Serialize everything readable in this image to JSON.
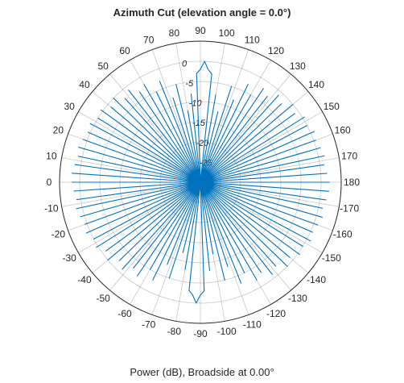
{
  "chart_data": {
    "type": "line",
    "projection": "polar",
    "title": "Azimuth Cut (elevation angle = 0.0°)",
    "xlabel": "Power (dB), Broadside at 0.00°",
    "theta_tick_labels": [
      "0",
      "10",
      "20",
      "30",
      "40",
      "50",
      "60",
      "70",
      "80",
      "90",
      "100",
      "110",
      "120",
      "130",
      "140",
      "150",
      "160",
      "170",
      "180",
      "-170",
      "-160",
      "-150",
      "-140",
      "-130",
      "-120",
      "-110",
      "-100",
      "-90",
      "-80",
      "-70",
      "-60",
      "-50",
      "-40",
      "-30",
      "-20",
      "-10"
    ],
    "theta_ticks_deg": [
      0,
      10,
      20,
      30,
      40,
      50,
      60,
      70,
      80,
      90,
      100,
      110,
      120,
      130,
      140,
      150,
      160,
      170,
      180,
      190,
      200,
      210,
      220,
      230,
      240,
      250,
      260,
      270,
      280,
      290,
      300,
      310,
      320,
      330,
      340,
      350
    ],
    "theta_zero_location": "left",
    "theta_direction": "clockwise",
    "r_tick_labels": [
      "0",
      "-5",
      "-10",
      "-15",
      "-20",
      "-25"
    ],
    "r_ticks": [
      0,
      -5,
      -10,
      -15,
      -20,
      -25
    ],
    "rlim": [
      -30,
      5
    ],
    "grid": true,
    "legend": "none",
    "line_color": "#0072BD",
    "series": [
      {
        "theta": [
          0,
          2,
          4,
          6,
          8,
          10,
          12,
          14,
          16,
          18,
          20,
          22,
          24,
          26,
          28,
          30,
          32,
          34,
          36,
          38,
          40,
          42,
          44,
          46,
          48,
          50,
          52,
          54,
          56,
          58,
          60,
          62,
          64,
          66,
          68,
          70,
          72,
          74,
          76,
          78,
          80,
          82,
          84,
          86,
          88,
          90,
          92,
          94,
          96,
          98,
          100,
          102,
          104,
          106,
          108,
          110,
          112,
          114,
          116,
          118,
          120,
          122,
          124,
          126,
          128,
          130,
          132,
          134,
          136,
          138,
          140,
          142,
          144,
          146,
          148,
          150,
          152,
          154,
          156,
          158,
          160,
          162,
          164,
          166,
          168,
          170,
          172,
          174,
          176,
          178,
          180,
          182,
          184,
          186,
          188,
          190,
          192,
          194,
          196,
          198,
          200,
          202,
          204,
          206,
          208,
          210,
          212,
          214,
          216,
          218,
          220,
          222,
          224,
          226,
          228,
          230,
          232,
          234,
          236,
          238,
          240,
          242,
          244,
          246,
          248,
          250,
          252,
          254,
          256,
          258,
          260,
          262,
          264,
          266,
          268,
          270,
          272,
          274,
          276,
          278,
          280,
          282,
          284,
          286,
          288,
          290,
          292,
          294,
          296,
          298,
          300,
          302,
          304,
          306,
          308,
          310,
          312,
          314,
          316,
          318,
          320,
          322,
          324,
          326,
          328,
          330,
          332,
          334,
          336,
          338,
          340,
          342,
          344,
          346,
          348,
          350,
          352,
          354,
          356,
          358,
          360
        ],
        "r": [
          2,
          -30,
          2,
          -30,
          1.5,
          -30,
          1,
          -30,
          1.5,
          -30,
          1,
          -30,
          0.5,
          -30,
          1,
          -30,
          0,
          -30,
          0.5,
          -30,
          -1,
          -30,
          0,
          -30,
          -2,
          -30,
          -1,
          -30,
          -3,
          -30,
          -2,
          -30,
          -5,
          -30,
          -3,
          -30,
          -8,
          -30,
          -5,
          -30,
          -12,
          -30,
          -8,
          -30,
          -3,
          -2,
          0,
          -2,
          -3,
          -30,
          -8,
          -30,
          -12,
          -30,
          -5,
          -30,
          -8,
          -30,
          -3,
          -30,
          -5,
          -30,
          -2,
          -30,
          -3,
          -30,
          -1,
          -30,
          -2,
          -30,
          0,
          -30,
          -1,
          -30,
          0.5,
          -30,
          0,
          -30,
          1,
          -30,
          0.5,
          -30,
          1,
          -30,
          1.5,
          -30,
          1,
          -30,
          1.5,
          -30,
          2,
          -30,
          2,
          -30,
          1.5,
          -30,
          1,
          -30,
          1.5,
          -30,
          1,
          -30,
          0.5,
          -30,
          1,
          -30,
          0,
          -30,
          0.5,
          -30,
          -1,
          -30,
          0,
          -30,
          -2,
          -30,
          -1,
          -30,
          -3,
          -30,
          -2,
          -30,
          -5,
          -30,
          -3,
          -30,
          -8,
          -30,
          -5,
          -30,
          -12,
          -30,
          -8,
          -30,
          -3,
          -2,
          0,
          -2,
          -3,
          -30,
          -8,
          -30,
          -12,
          -30,
          -5,
          -30,
          -8,
          -30,
          -3,
          -30,
          -5,
          -30,
          -2,
          -30,
          -3,
          -30,
          -1,
          -30,
          -2,
          -30,
          0,
          -30,
          -1,
          -30,
          0.5,
          -30,
          0,
          -30,
          1,
          -30,
          0.5,
          -30,
          1,
          -30,
          1.5,
          -30,
          1,
          -30,
          1.5,
          -30,
          2
        ]
      }
    ]
  }
}
